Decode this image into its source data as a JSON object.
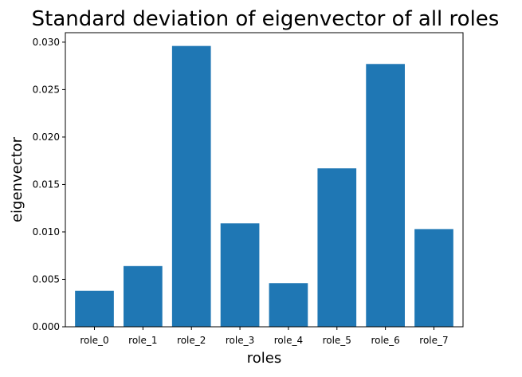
{
  "chart_data": {
    "type": "bar",
    "title": "Standard deviation of eigenvector of all roles",
    "xlabel": "roles",
    "ylabel": "eigenvector",
    "categories": [
      "role_0",
      "role_1",
      "role_2",
      "role_3",
      "role_4",
      "role_5",
      "role_6",
      "role_7"
    ],
    "values": [
      0.0038,
      0.0064,
      0.0296,
      0.0109,
      0.0046,
      0.0167,
      0.0277,
      0.0103
    ],
    "ylim": [
      0,
      0.031
    ],
    "yticks": [
      0.0,
      0.005,
      0.01,
      0.015,
      0.02,
      0.025,
      0.03
    ],
    "ytick_labels": [
      "0.000",
      "0.005",
      "0.010",
      "0.015",
      "0.020",
      "0.025",
      "0.030"
    ],
    "bar_color": "#1f77b4",
    "grid": false,
    "legend": "none"
  }
}
